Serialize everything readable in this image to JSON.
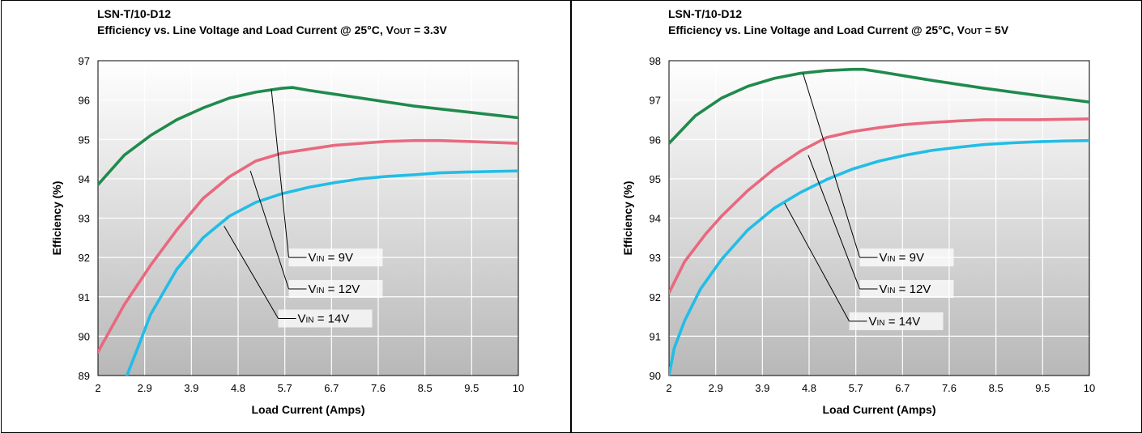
{
  "chart_data": [
    {
      "type": "line",
      "title": "LSN-T/10-D12",
      "subtitle_prefix": "Efficiency vs. Line Voltage and Load Current @ 25°C, V",
      "subtitle_sub": "OUT",
      "subtitle_suffix": " = 3.3V",
      "xlabel": "Load Current (Amps)",
      "ylabel": "Efficiency (%)",
      "xlim": [
        2,
        10
      ],
      "ylim": [
        89,
        97
      ],
      "x_ticks": [
        "2",
        "2.9",
        "3.9",
        "4.8",
        "5.7",
        "6.7",
        "7.6",
        "8.5",
        "9.5",
        "10"
      ],
      "y_ticks": [
        "89",
        "90",
        "91",
        "92",
        "93",
        "94",
        "95",
        "96",
        "97"
      ],
      "grid": true,
      "series": [
        {
          "name_prefix": "V",
          "name_sub": "IN",
          "name_suffix": " = 9V",
          "color": "#1f8a4c",
          "x": [
            2,
            2.5,
            3,
            3.5,
            4,
            4.5,
            5,
            5.5,
            5.7,
            6,
            7,
            8,
            9,
            10
          ],
          "y": [
            93.85,
            94.6,
            95.1,
            95.5,
            95.8,
            96.05,
            96.2,
            96.3,
            96.32,
            96.25,
            96.05,
            95.85,
            95.7,
            95.55
          ],
          "callout": {
            "point": [
              5.3,
              96.27
            ],
            "text_at": [
              6.0,
              92.0
            ]
          }
        },
        {
          "name_prefix": "V",
          "name_sub": "IN",
          "name_suffix": " = 12V",
          "color": "#e8697f",
          "x": [
            2,
            2.5,
            3,
            3.5,
            4,
            4.5,
            5,
            5.5,
            6,
            6.5,
            7,
            7.5,
            8,
            8.5,
            9,
            10
          ],
          "y": [
            89.6,
            90.8,
            91.8,
            92.7,
            93.5,
            94.05,
            94.45,
            94.65,
            94.75,
            94.85,
            94.9,
            94.95,
            94.97,
            94.97,
            94.95,
            94.9
          ],
          "callout": {
            "point": [
              4.9,
              94.2
            ],
            "text_at": [
              6.0,
              91.2
            ]
          }
        },
        {
          "name_prefix": "V",
          "name_sub": "IN",
          "name_suffix": " = 14V",
          "color": "#22bde6",
          "x": [
            2.55,
            2.8,
            3,
            3.5,
            4,
            4.5,
            5,
            5.5,
            6,
            6.5,
            7,
            7.5,
            8,
            8.5,
            9,
            10
          ],
          "y": [
            89.0,
            89.85,
            90.55,
            91.7,
            92.5,
            93.05,
            93.4,
            93.62,
            93.78,
            93.9,
            94.0,
            94.06,
            94.1,
            94.15,
            94.17,
            94.2
          ],
          "callout": {
            "point": [
              4.4,
              92.8
            ],
            "text_at": [
              5.8,
              90.45
            ]
          }
        }
      ]
    },
    {
      "type": "line",
      "title": "LSN-T/10-D12",
      "subtitle_prefix": "Efficiency vs. Line Voltage and Load Current @ 25°C, V",
      "subtitle_sub": "OUT",
      "subtitle_suffix": " = 5V",
      "xlabel": "Load Current (Amps)",
      "ylabel": "Efficiency (%)",
      "xlim": [
        2,
        10
      ],
      "ylim": [
        90,
        98
      ],
      "x_ticks": [
        "2",
        "2.9",
        "3.9",
        "4.8",
        "5.7",
        "6.7",
        "7.6",
        "8.5",
        "9.5",
        "10"
      ],
      "y_ticks": [
        "90",
        "91",
        "92",
        "93",
        "94",
        "95",
        "96",
        "97",
        "98"
      ],
      "grid": true,
      "series": [
        {
          "name_prefix": "V",
          "name_sub": "IN",
          "name_suffix": " = 9V",
          "color": "#1f8a4c",
          "x": [
            2,
            2.5,
            3,
            3.5,
            4,
            4.5,
            5,
            5.5,
            5.7,
            6,
            7,
            8,
            9,
            10
          ],
          "y": [
            95.9,
            96.6,
            97.05,
            97.35,
            97.55,
            97.68,
            97.75,
            97.78,
            97.78,
            97.72,
            97.5,
            97.3,
            97.12,
            96.95
          ],
          "callout": {
            "point": [
              4.55,
              97.68
            ],
            "text_at": [
              6.0,
              93.0
            ]
          }
        },
        {
          "name_prefix": "V",
          "name_sub": "IN",
          "name_suffix": " = 12V",
          "color": "#e8697f",
          "x": [
            2,
            2.3,
            2.7,
            3,
            3.5,
            4,
            4.5,
            5,
            5.5,
            6,
            6.5,
            7,
            7.5,
            8,
            8.5,
            9,
            10
          ],
          "y": [
            92.1,
            92.9,
            93.6,
            94.05,
            94.7,
            95.25,
            95.7,
            96.05,
            96.2,
            96.3,
            96.38,
            96.43,
            96.47,
            96.5,
            96.5,
            96.5,
            96.52
          ],
          "callout": {
            "point": [
              4.65,
              95.6
            ],
            "text_at": [
              6.0,
              92.2
            ]
          }
        },
        {
          "name_prefix": "V",
          "name_sub": "IN",
          "name_suffix": " = 14V",
          "color": "#22bde6",
          "x": [
            2,
            2.1,
            2.3,
            2.6,
            3,
            3.5,
            4,
            4.5,
            5,
            5.5,
            6,
            6.5,
            7,
            7.5,
            8,
            8.5,
            9,
            9.5,
            10
          ],
          "y": [
            90.0,
            90.7,
            91.4,
            92.2,
            92.95,
            93.7,
            94.25,
            94.65,
            94.98,
            95.25,
            95.45,
            95.6,
            95.72,
            95.8,
            95.87,
            95.91,
            95.94,
            95.96,
            95.97
          ],
          "callout": {
            "point": [
              4.2,
              94.38
            ],
            "text_at": [
              5.8,
              91.38
            ]
          }
        }
      ]
    }
  ]
}
